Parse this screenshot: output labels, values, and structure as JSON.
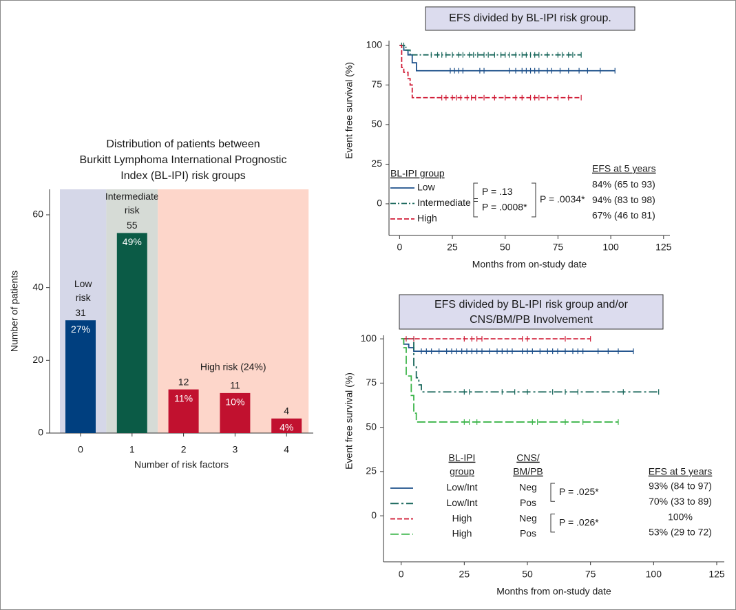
{
  "chart_data": [
    {
      "type": "bar",
      "title": [
        "Distribution of patients between",
        "Burkitt Lymphoma International Prognostic",
        "Index (BL-IPI) risk groups"
      ],
      "xlabel": "Number of risk factors",
      "ylabel": "Number of patients",
      "categories": [
        "0",
        "1",
        "2",
        "3",
        "4"
      ],
      "values": [
        31,
        55,
        12,
        11,
        4
      ],
      "percent_labels": [
        "27%",
        "49%",
        "11%",
        "10%",
        "4%"
      ],
      "colors": [
        "#003f7f",
        "#0b5b46",
        "#c1112f",
        "#c1112f",
        "#c1112f"
      ],
      "regions": [
        {
          "label": [
            "Low",
            "risk"
          ],
          "from": 0,
          "to": 0,
          "color": "#d5d7e8"
        },
        {
          "label": [
            "Intermediate",
            "risk"
          ],
          "from": 1,
          "to": 1,
          "color": "#d6dbd6"
        },
        {
          "label": [
            "High risk (24%)"
          ],
          "from": 2,
          "to": 4,
          "color": "#fdd6ca"
        }
      ],
      "ylim": [
        0,
        67
      ],
      "yticks": [
        0,
        20,
        40,
        60
      ]
    },
    {
      "type": "km",
      "title": [
        "EFS divided by BL-IPI risk group."
      ],
      "xlabel": "Months from on-study date",
      "ylabel": "Event free survival (%)",
      "xlim": [
        -5,
        128
      ],
      "xticks": [
        0,
        25,
        50,
        75,
        100,
        125
      ],
      "ylim": [
        -20,
        103
      ],
      "yticks": [
        0,
        25,
        50,
        75,
        100
      ],
      "legend_title": [
        "BL-IPI group"
      ],
      "efs_title": "EFS at 5 years",
      "series": [
        {
          "name": "Low",
          "color": "#1c4f8a",
          "line_style": "solid",
          "x": [
            0,
            2,
            2,
            4,
            4,
            6,
            6,
            8,
            8,
            102
          ],
          "values": [
            100,
            100,
            97,
            97,
            94,
            94,
            89,
            89,
            84,
            84
          ],
          "censor_x": [
            24,
            26,
            28,
            30,
            38,
            40,
            52,
            55,
            58,
            60,
            62,
            64,
            66,
            70,
            72,
            76,
            80,
            85,
            89,
            95,
            102
          ],
          "censor_y": [
            84,
            84,
            84,
            84,
            84,
            84,
            84,
            84,
            84,
            84,
            84,
            84,
            84,
            84,
            84,
            84,
            84,
            84,
            84,
            84,
            84
          ],
          "efs": "84% (65 to 93)"
        },
        {
          "name": "Intermediate",
          "color": "#17665a",
          "line_style": "dashdot",
          "x": [
            0,
            3,
            3,
            5,
            5,
            86
          ],
          "values": [
            100,
            100,
            97,
            97,
            94,
            94
          ],
          "censor_x": [
            1,
            2,
            15,
            18,
            20,
            22,
            25,
            28,
            30,
            33,
            35,
            37,
            40,
            42,
            45,
            48,
            50,
            52,
            55,
            58,
            60,
            62,
            64,
            66,
            70,
            75,
            77,
            80,
            82,
            86
          ],
          "censor_y": [
            100,
            100,
            94,
            94,
            94,
            94,
            94,
            94,
            94,
            94,
            94,
            94,
            94,
            94,
            94,
            94,
            94,
            94,
            94,
            94,
            94,
            94,
            94,
            94,
            94,
            94,
            94,
            94,
            94,
            94
          ],
          "efs": "94% (83 to 98)"
        },
        {
          "name": "High",
          "color": "#d01a35",
          "line_style": "dashed",
          "x": [
            0,
            1,
            1,
            2,
            2,
            4,
            4,
            5,
            5,
            6,
            6,
            86
          ],
          "values": [
            100,
            100,
            86,
            86,
            83,
            83,
            79,
            79,
            75,
            75,
            67,
            67
          ],
          "censor_x": [
            20,
            22,
            25,
            27,
            29,
            32,
            34,
            36,
            40,
            45,
            50,
            55,
            58,
            62,
            64,
            66,
            70,
            75,
            80,
            86
          ],
          "censor_y": [
            67,
            67,
            67,
            67,
            67,
            67,
            67,
            67,
            67,
            67,
            67,
            67,
            67,
            67,
            67,
            67,
            67,
            67,
            67,
            67
          ],
          "efs": "67% (46 to 81)"
        }
      ],
      "pvalues": [
        {
          "label": "P = .13",
          "rows": [
            0,
            1
          ]
        },
        {
          "label": "P = .0008*",
          "rows": [
            1,
            2
          ]
        },
        {
          "label": "P = .0034*",
          "rows": [
            0,
            2
          ]
        }
      ]
    },
    {
      "type": "km",
      "title": [
        "EFS divided by BL-IPI risk group and/or",
        "CNS/BM/PB Involvement"
      ],
      "xlabel": "Months from on-study date",
      "ylabel": "Event free survival (%)",
      "xlim": [
        -7,
        128
      ],
      "xticks": [
        0,
        25,
        50,
        75,
        100,
        125
      ],
      "ylim": [
        -26,
        102
      ],
      "yticks": [
        0,
        25,
        50,
        75,
        100
      ],
      "group_header": [
        "BL-IPI",
        "group"
      ],
      "cns_header": [
        "CNS/",
        "BM/PB"
      ],
      "efs_title": "EFS at 5 years",
      "series": [
        {
          "group": "Low/Int",
          "cns": "Neg",
          "color": "#1c4f8a",
          "line_style": "solid",
          "x": [
            0,
            1,
            1,
            3,
            3,
            5,
            5,
            92
          ],
          "values": [
            100,
            100,
            97,
            97,
            95,
            95,
            93,
            93
          ],
          "censor_x": [
            8,
            10,
            12,
            15,
            18,
            20,
            22,
            24,
            26,
            28,
            30,
            32,
            35,
            38,
            40,
            42,
            44,
            48,
            50,
            52,
            55,
            58,
            60,
            62,
            65,
            68,
            70,
            72,
            78,
            82,
            86,
            92
          ],
          "censor_y": [
            93,
            93,
            93,
            93,
            93,
            93,
            93,
            93,
            93,
            93,
            93,
            93,
            93,
            93,
            93,
            93,
            93,
            93,
            93,
            93,
            93,
            93,
            93,
            93,
            93,
            93,
            93,
            93,
            93,
            93,
            93,
            93
          ],
          "efs": "93% (84 to 97)"
        },
        {
          "group": "Low/Int",
          "cns": "Pos",
          "color": "#17665a",
          "line_style": "longdashdot",
          "x": [
            0,
            5,
            5,
            6,
            6,
            7,
            7,
            8,
            8,
            102
          ],
          "values": [
            100,
            100,
            85,
            85,
            78,
            78,
            74,
            74,
            70,
            70
          ],
          "censor_x": [
            25,
            27,
            40,
            45,
            50,
            60,
            65,
            70,
            88,
            102
          ],
          "censor_y": [
            70,
            70,
            70,
            70,
            70,
            70,
            70,
            70,
            70,
            70
          ],
          "efs": "70% (33 to 89)"
        },
        {
          "group": "High",
          "cns": "Neg",
          "color": "#d01a35",
          "line_style": "dashed",
          "x": [
            0,
            75
          ],
          "values": [
            100,
            100
          ],
          "censor_x": [
            2,
            5,
            25,
            28,
            30,
            32,
            48,
            50,
            65,
            75
          ],
          "censor_y": [
            100,
            100,
            100,
            100,
            100,
            100,
            100,
            100,
            100,
            100
          ],
          "efs": "100%"
        },
        {
          "group": "High",
          "cns": "Pos",
          "color": "#3cb54a",
          "line_style": "longdash",
          "x": [
            0,
            1,
            1,
            2,
            2,
            4,
            4,
            5,
            5,
            6,
            6,
            86
          ],
          "values": [
            100,
            100,
            95,
            95,
            79,
            79,
            68,
            68,
            58,
            58,
            53,
            53
          ],
          "censor_x": [
            25,
            27,
            30,
            52,
            54,
            65,
            72,
            86
          ],
          "censor_y": [
            53,
            53,
            53,
            53,
            53,
            53,
            53,
            53
          ],
          "efs": "53% (29 to 72)"
        }
      ],
      "pvalues": [
        {
          "label": "P = .025*",
          "rows": [
            0,
            1
          ]
        },
        {
          "label": "P = .026*",
          "rows": [
            2,
            3
          ]
        }
      ]
    }
  ]
}
